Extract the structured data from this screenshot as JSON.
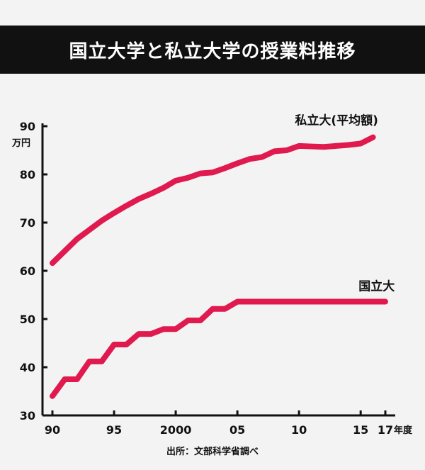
{
  "header": {
    "title": "国立大学と私立大学の授業料推移"
  },
  "source": "出所：文部科学省調べ",
  "colors": {
    "line": "#e0194e",
    "axis": "#111111",
    "title_bg": "#111111"
  },
  "chart_data": {
    "type": "line",
    "title": "国立大学と私立大学の授業料推移",
    "yunit": "万円",
    "xunit": "年度",
    "ylim": [
      30,
      90
    ],
    "yticks": [
      30,
      40,
      50,
      60,
      70,
      80,
      90
    ],
    "xlim": [
      1990,
      2017
    ],
    "xtick_values": [
      1990,
      1995,
      2000,
      2005,
      2010,
      2015,
      2017
    ],
    "xtick_labels": [
      "90",
      "95",
      "2000",
      "05",
      "10",
      "15",
      "17"
    ],
    "grid": false,
    "series": [
      {
        "name": "私立大(平均額)",
        "x": [
          1990,
          1991,
          1992,
          1993,
          1994,
          1995,
          1996,
          1997,
          1998,
          1999,
          2000,
          2001,
          2002,
          2003,
          2004,
          2005,
          2006,
          2007,
          2008,
          2009,
          2010,
          2011,
          2012,
          2013,
          2014,
          2015,
          2016
        ],
        "values": [
          61.6,
          64.1,
          66.6,
          68.5,
          70.4,
          72.0,
          73.5,
          74.9,
          76.0,
          77.2,
          78.7,
          79.3,
          80.2,
          80.4,
          81.3,
          82.3,
          83.2,
          83.6,
          84.8,
          85.0,
          85.9,
          85.8,
          85.7,
          85.9,
          86.1,
          86.4,
          87.7
        ]
      },
      {
        "name": "国立大",
        "x": [
          1990,
          1991,
          1992,
          1993,
          1994,
          1995,
          1996,
          1997,
          1998,
          1999,
          2000,
          2001,
          2002,
          2003,
          2004,
          2005,
          2006,
          2007,
          2008,
          2009,
          2010,
          2011,
          2012,
          2013,
          2014,
          2015,
          2016,
          2017
        ],
        "values": [
          34.0,
          37.5,
          37.5,
          41.2,
          41.2,
          44.7,
          44.7,
          46.9,
          46.9,
          47.9,
          47.9,
          49.7,
          49.7,
          52.1,
          52.1,
          53.6,
          53.6,
          53.6,
          53.6,
          53.6,
          53.6,
          53.6,
          53.6,
          53.6,
          53.6,
          53.6,
          53.6,
          53.6
        ]
      }
    ]
  }
}
